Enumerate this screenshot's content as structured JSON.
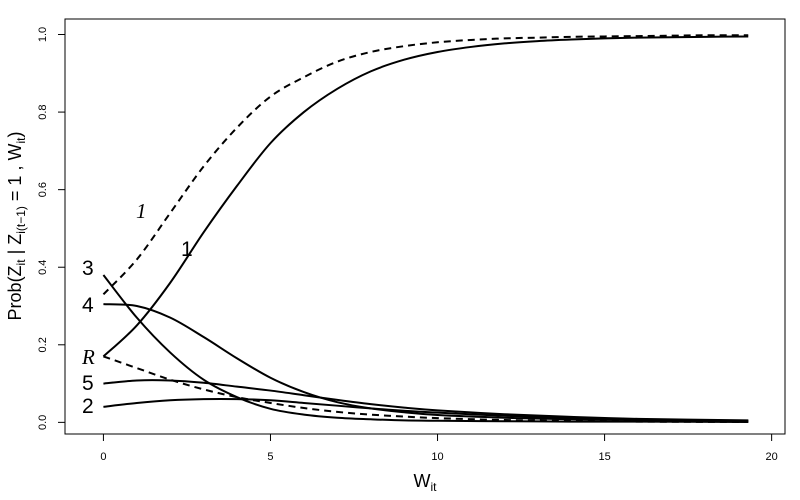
{
  "chart_data": {
    "type": "line",
    "xlabel_main": "W",
    "xlabel_sub": "it",
    "ylabel_parts": [
      {
        "text": "Prob(Z",
        "sub": false
      },
      {
        "text": "it",
        "sub": true
      },
      {
        "text": " | Z",
        "sub": false
      },
      {
        "text": "i(t−1)",
        "sub": true
      },
      {
        "text": " = 1 , W",
        "sub": false
      },
      {
        "text": "it",
        "sub": true
      },
      {
        "text": ")",
        "sub": false
      }
    ],
    "xlim": [
      -1.15,
      20.4
    ],
    "ylim": [
      -0.03,
      1.04
    ],
    "xticks": [
      0,
      5,
      10,
      15,
      20
    ],
    "xtick_labels": [
      "0",
      "5",
      "10",
      "15",
      "20"
    ],
    "yticks": [
      0.0,
      0.2,
      0.4,
      0.6,
      0.8,
      1.0
    ],
    "ytick_labels": [
      "0.0",
      "0.2",
      "0.4",
      "0.6",
      "0.8",
      "1.0"
    ],
    "grid": false,
    "series": [
      {
        "label": "1",
        "label_style": "normal",
        "dashed": false,
        "x": [
          0,
          1,
          2,
          3,
          4,
          5,
          6,
          7,
          8,
          9,
          10,
          11,
          12,
          13,
          14,
          15,
          16,
          17,
          18,
          19.3
        ],
        "y": [
          0.17,
          0.25,
          0.36,
          0.49,
          0.61,
          0.72,
          0.8,
          0.86,
          0.905,
          0.935,
          0.955,
          0.968,
          0.977,
          0.983,
          0.987,
          0.99,
          0.992,
          0.993,
          0.994,
          0.995
        ]
      },
      {
        "label": "1",
        "label_style": "italic",
        "dashed": true,
        "x": [
          0,
          1,
          2,
          3,
          4,
          5,
          6,
          7,
          8,
          9,
          10,
          11,
          12,
          13,
          14,
          15,
          16,
          17,
          18,
          19.3
        ],
        "y": [
          0.33,
          0.42,
          0.54,
          0.66,
          0.76,
          0.84,
          0.89,
          0.93,
          0.955,
          0.97,
          0.98,
          0.986,
          0.99,
          0.992,
          0.994,
          0.995,
          0.996,
          0.997,
          0.998,
          0.998
        ]
      },
      {
        "label": "3",
        "label_style": "normal",
        "dashed": false,
        "x": [
          0,
          1,
          2,
          3,
          4,
          5,
          6,
          7,
          8,
          9,
          10,
          12,
          14,
          16,
          19.3
        ],
        "y": [
          0.38,
          0.27,
          0.18,
          0.11,
          0.065,
          0.035,
          0.02,
          0.012,
          0.008,
          0.005,
          0.004,
          0.003,
          0.002,
          0.002,
          0.001
        ]
      },
      {
        "label": "4",
        "label_style": "normal",
        "dashed": false,
        "x": [
          0,
          1,
          2,
          3,
          4,
          5,
          6,
          7,
          8,
          9,
          10,
          12,
          14,
          16,
          19.3
        ],
        "y": [
          0.305,
          0.3,
          0.27,
          0.22,
          0.165,
          0.115,
          0.078,
          0.052,
          0.036,
          0.026,
          0.019,
          0.012,
          0.008,
          0.006,
          0.004
        ]
      },
      {
        "label": "5",
        "label_style": "normal",
        "dashed": false,
        "x": [
          0,
          1,
          2,
          3,
          4,
          5,
          6,
          7,
          8,
          9,
          10,
          12,
          14,
          16,
          19.3
        ],
        "y": [
          0.1,
          0.108,
          0.108,
          0.102,
          0.092,
          0.082,
          0.07,
          0.058,
          0.047,
          0.038,
          0.031,
          0.021,
          0.014,
          0.009,
          0.005
        ]
      },
      {
        "label": "2",
        "label_style": "normal",
        "dashed": false,
        "x": [
          0,
          1,
          2,
          3,
          4,
          5,
          6,
          7,
          8,
          9,
          10,
          12,
          14,
          16,
          19.3
        ],
        "y": [
          0.04,
          0.05,
          0.057,
          0.06,
          0.06,
          0.057,
          0.05,
          0.043,
          0.036,
          0.03,
          0.025,
          0.017,
          0.011,
          0.007,
          0.004
        ]
      },
      {
        "label": "R",
        "label_style": "italic",
        "dashed": true,
        "x": [
          0,
          1,
          2,
          3,
          4,
          5,
          6,
          7,
          8,
          9,
          10,
          12,
          14,
          16,
          19.3
        ],
        "y": [
          0.17,
          0.14,
          0.11,
          0.085,
          0.065,
          0.05,
          0.037,
          0.027,
          0.02,
          0.015,
          0.011,
          0.006,
          0.004,
          0.002,
          0.001
        ]
      }
    ]
  }
}
